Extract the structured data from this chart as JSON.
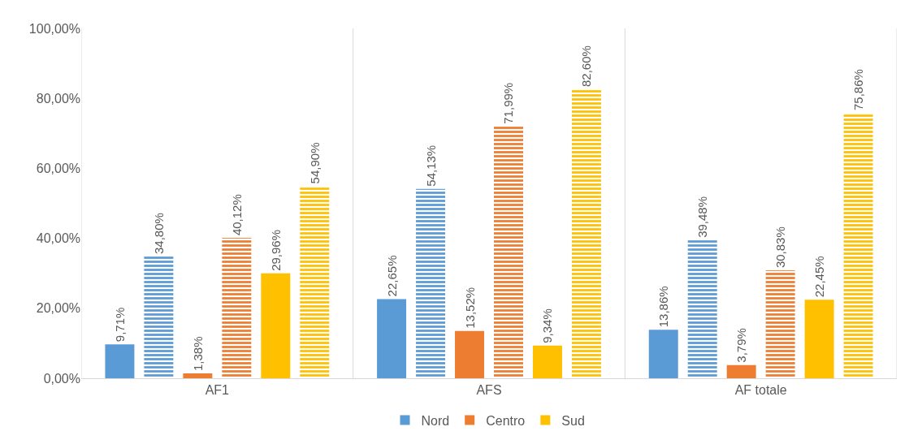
{
  "chart_data": {
    "type": "bar",
    "categories": [
      "AF1",
      "AFS",
      "AF totale"
    ],
    "series": [
      {
        "name": "Nord",
        "color": "#5b9bd5",
        "values": [
          9.71,
          22.65,
          13.86
        ],
        "value_labels": [
          "9,71%",
          "22,65%",
          "13,86%"
        ]
      },
      {
        "color": "#5b9bd5",
        "values": [
          34.8,
          54.13,
          39.48
        ],
        "value_labels": [
          "34,80%",
          "54,13%",
          "39,48%"
        ]
      },
      {
        "name": "Centro",
        "color": "#ed7d31",
        "values": [
          1.38,
          13.52,
          3.79
        ],
        "value_labels": [
          "1,38%",
          "13,52%",
          "3,79%"
        ]
      },
      {
        "color": "#ed7d31",
        "values": [
          40.12,
          71.99,
          30.83
        ],
        "value_labels": [
          "40,12%",
          "71,99%",
          "30,83%"
        ]
      },
      {
        "name": "Sud",
        "color": "#ffc000",
        "values": [
          29.96,
          9.34,
          22.45
        ],
        "value_labels": [
          "29,96%",
          "9,34%",
          "22,45%"
        ]
      },
      {
        "color": "#ffc000",
        "values": [
          54.9,
          82.6,
          75.86
        ],
        "value_labels": [
          "54,90%",
          "82,60%",
          "75,86%"
        ]
      }
    ],
    "ylim": [
      0,
      100
    ],
    "yticks": [
      {
        "value": 0,
        "label": "0,00%"
      },
      {
        "value": 20,
        "label": "20,00%"
      },
      {
        "value": 40,
        "label": "40,00%"
      },
      {
        "value": 60,
        "label": "60,00%"
      },
      {
        "value": 80,
        "label": "80,00%"
      },
      {
        "value": 100,
        "label": "100,00%"
      }
    ],
    "grid": "x",
    "legend": "bottom"
  }
}
